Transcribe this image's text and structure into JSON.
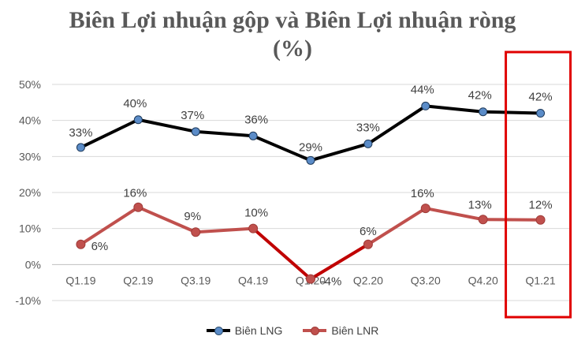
{
  "chart_data": {
    "type": "line",
    "title_line1": "Biên Lợi nhuận gộp và Biên Lợi nhuận ròng",
    "title_line2": "(%)",
    "categories": [
      "Q1.19",
      "Q2.19",
      "Q3.19",
      "Q4.19",
      "Q1.20",
      "Q2.20",
      "Q3.20",
      "Q4.20",
      "Q1.21"
    ],
    "y_ticks": [
      "50%",
      "40%",
      "30%",
      "20%",
      "10%",
      "0%",
      "-10%"
    ],
    "ylim": [
      -10,
      50
    ],
    "grid": true,
    "legend_position": "bottom",
    "series": [
      {
        "name": "Biên LNG",
        "values": [
          32.5,
          40.2,
          36.9,
          35.7,
          28.9,
          33.5,
          44.0,
          42.4,
          42.0
        ],
        "labels": [
          "33%",
          "40%",
          "37%",
          "36%",
          "29%",
          "33%",
          "44%",
          "42%",
          "42%"
        ],
        "color": "#000000",
        "marker_color": "#5b8cc8"
      },
      {
        "name": "Biên LNR",
        "values": [
          5.6,
          15.9,
          9.0,
          10.0,
          -4.0,
          5.6,
          15.6,
          12.5,
          12.4
        ],
        "labels": [
          "6%",
          "16%",
          "9%",
          "10%",
          "-4%",
          "6%",
          "16%",
          "13%",
          "12%"
        ],
        "color": "#c0504d",
        "highlight_color": "#c00000"
      }
    ],
    "highlight": {
      "category": "Q1.21",
      "color": "#e00000"
    }
  }
}
